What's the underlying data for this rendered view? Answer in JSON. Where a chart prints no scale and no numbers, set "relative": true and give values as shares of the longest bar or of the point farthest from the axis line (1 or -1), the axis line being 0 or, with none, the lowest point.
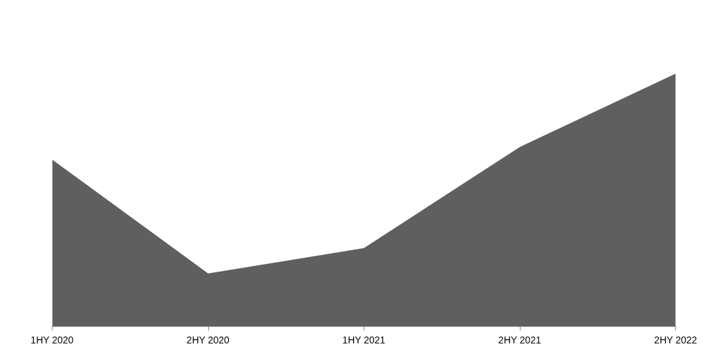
{
  "chart_data": {
    "type": "area",
    "relative": true,
    "categories": [
      "1HY 2020",
      "2HY 2020",
      "1HY 2021",
      "2HY 2021",
      "2HY 2022"
    ],
    "series": [
      {
        "color": "#5f5f5f",
        "values": [
          0.66,
          0.21,
          0.31,
          0.71,
          1
        ]
      }
    ]
  }
}
